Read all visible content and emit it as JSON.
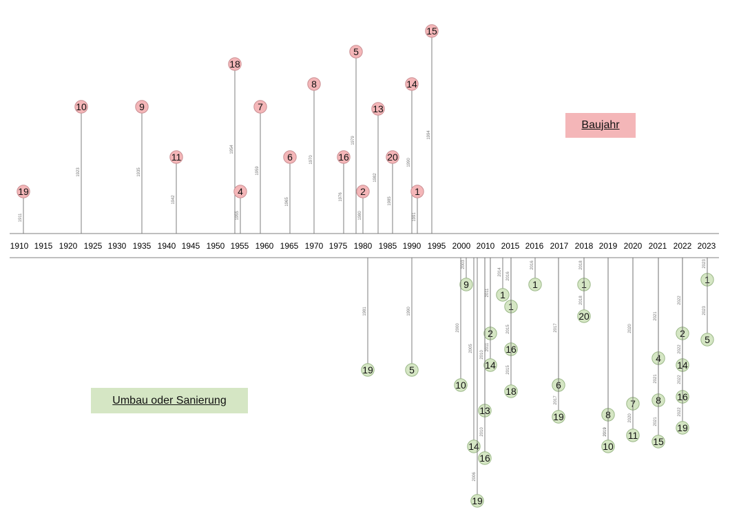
{
  "legend": {
    "baujahr_label": "Baujahr",
    "umbau_label": "Umbau oder Sanierung"
  },
  "colors": {
    "baujahr_fill": "#f4b6b8",
    "baujahr_stroke": "#c98f93",
    "umbau_fill": "#d5e6c4",
    "umbau_stroke": "#9bb888"
  },
  "axis": {
    "ticks": [
      "1910",
      "1915",
      "1920",
      "1925",
      "1930",
      "1935",
      "1940",
      "1945",
      "1950",
      "1955",
      "1960",
      "1965",
      "1970",
      "1975",
      "1980",
      "1985",
      "1990",
      "1995",
      "2000",
      "2010",
      "2015",
      "2016",
      "2017",
      "2018",
      "2019",
      "2020",
      "2021",
      "2022",
      "2023"
    ]
  },
  "baujahr": [
    {
      "num": "19",
      "year": "1911"
    },
    {
      "num": "10",
      "year": "1923"
    },
    {
      "num": "9",
      "year": "1935"
    },
    {
      "num": "11",
      "year": "1942"
    },
    {
      "num": "18",
      "year": "1954"
    },
    {
      "num": "4",
      "year": "1955"
    },
    {
      "num": "7",
      "year": "1959"
    },
    {
      "num": "6",
      "year": "1965"
    },
    {
      "num": "8",
      "year": "1970"
    },
    {
      "num": "16",
      "year": "1976"
    },
    {
      "num": "5",
      "year": "1979"
    },
    {
      "num": "2",
      "year": "1980"
    },
    {
      "num": "13",
      "year": "1982"
    },
    {
      "num": "20",
      "year": "1985"
    },
    {
      "num": "14",
      "year": "1990"
    },
    {
      "num": "1",
      "year": "1991"
    },
    {
      "num": "15",
      "year": "1994"
    }
  ],
  "umbau": [
    {
      "num": "19",
      "year": "1981"
    },
    {
      "num": "5",
      "year": "1990"
    },
    {
      "num": "9",
      "year": "2003"
    },
    {
      "num": "10",
      "year": "2000"
    },
    {
      "num": "14",
      "year": "2005"
    },
    {
      "num": "19",
      "year": "2006"
    },
    {
      "num": "2",
      "year": "2011"
    },
    {
      "num": "14",
      "year": "2011"
    },
    {
      "num": "13",
      "year": "2010"
    },
    {
      "num": "16",
      "year": "2010"
    },
    {
      "num": "1",
      "year": "2014"
    },
    {
      "num": "1",
      "year": "2016"
    },
    {
      "num": "16",
      "year": "2015"
    },
    {
      "num": "18",
      "year": "2015"
    },
    {
      "num": "1",
      "year": "2016"
    },
    {
      "num": "6",
      "year": "2017"
    },
    {
      "num": "19",
      "year": "2017"
    },
    {
      "num": "1",
      "year": "2018"
    },
    {
      "num": "20",
      "year": "2018"
    },
    {
      "num": "8",
      "year": "2019"
    },
    {
      "num": "10",
      "year": "2019"
    },
    {
      "num": "7",
      "year": "2020"
    },
    {
      "num": "11",
      "year": "2020"
    },
    {
      "num": "4",
      "year": "2021"
    },
    {
      "num": "8",
      "year": "2021"
    },
    {
      "num": "15",
      "year": "2021"
    },
    {
      "num": "2",
      "year": "2022"
    },
    {
      "num": "14",
      "year": "2022"
    },
    {
      "num": "16",
      "year": "2022"
    },
    {
      "num": "19",
      "year": "2022"
    },
    {
      "num": "1",
      "year": "2023"
    },
    {
      "num": "5",
      "year": "2023"
    }
  ]
}
